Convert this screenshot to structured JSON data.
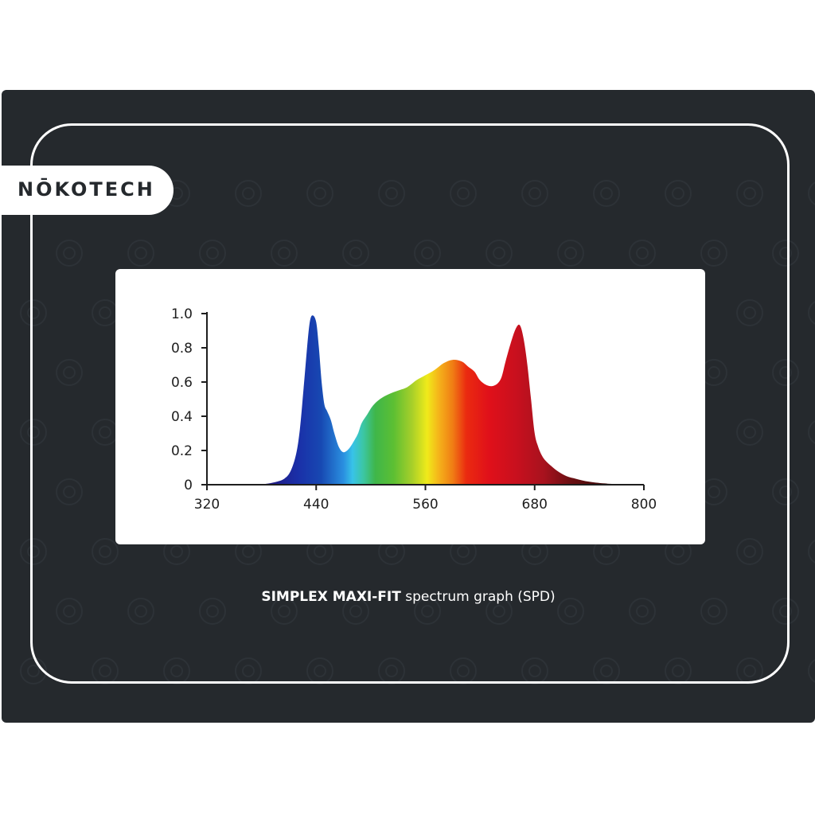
{
  "brand": {
    "logo_text": "NŌKOTECH"
  },
  "caption": {
    "product": "SIMPLEX MAXI-FIT",
    "rest": " spectrum graph (SPD)"
  },
  "colors": {
    "background": "#25292d",
    "frame": "#ffffff",
    "panel": "#ffffff"
  },
  "chart_data": {
    "type": "area",
    "title": "",
    "xlabel": "",
    "ylabel": "",
    "xlim": [
      320,
      800
    ],
    "ylim": [
      0,
      1.0
    ],
    "x_ticks": [
      320,
      440,
      560,
      680,
      800
    ],
    "x_tick_labels": [
      "320",
      "440",
      "560",
      "680",
      "800"
    ],
    "y_ticks": [
      0,
      0.2,
      0.4,
      0.6,
      0.8,
      1.0
    ],
    "y_tick_labels": [
      "0",
      "0.2",
      "0.4",
      "0.6",
      "0.8",
      "1.0"
    ],
    "grid": false,
    "fill": "wavelength-colored spectrum",
    "series": [
      {
        "x": [
          375,
          385,
          395,
          405,
          412,
          418,
          422,
          426,
          430,
          433,
          436,
          440,
          443,
          446,
          449,
          452,
          456,
          460,
          465,
          470,
          476,
          482,
          486,
          490,
          496,
          502,
          510,
          520,
          530,
          540,
          550,
          560,
          570,
          580,
          590,
          600,
          607,
          614,
          620,
          628,
          636,
          643,
          648,
          655,
          660,
          664,
          668,
          672,
          676,
          680,
          684,
          688,
          692,
          698,
          705,
          715,
          725,
          740,
          760,
          780,
          800
        ],
        "y": [
          0,
          0.005,
          0.015,
          0.035,
          0.08,
          0.18,
          0.32,
          0.55,
          0.8,
          0.95,
          0.99,
          0.95,
          0.8,
          0.6,
          0.47,
          0.43,
          0.38,
          0.3,
          0.22,
          0.19,
          0.21,
          0.26,
          0.3,
          0.36,
          0.41,
          0.46,
          0.5,
          0.53,
          0.55,
          0.57,
          0.61,
          0.64,
          0.67,
          0.71,
          0.73,
          0.72,
          0.69,
          0.66,
          0.61,
          0.58,
          0.58,
          0.62,
          0.72,
          0.85,
          0.92,
          0.93,
          0.85,
          0.7,
          0.5,
          0.3,
          0.22,
          0.17,
          0.14,
          0.11,
          0.08,
          0.05,
          0.035,
          0.017,
          0.006,
          0.002,
          0
        ]
      }
    ]
  }
}
